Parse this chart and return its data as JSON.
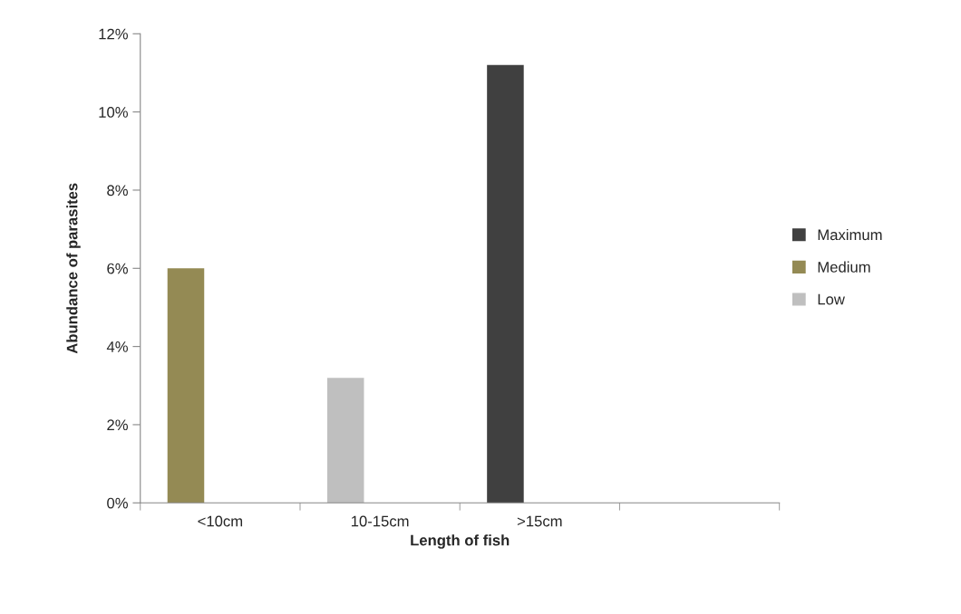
{
  "chart_data": {
    "type": "bar",
    "xlabel": "Length of fish",
    "ylabel": "Abundance of parasites",
    "categories": [
      "<10cm",
      "10-15cm",
      ">15cm",
      null
    ],
    "series": [
      {
        "name": "Maximum",
        "color": "#404040",
        "values": [
          null,
          null,
          11.2,
          null
        ]
      },
      {
        "name": "Medium",
        "color": "#948a54",
        "values": [
          6,
          null,
          null,
          null
        ]
      },
      {
        "name": "Low",
        "color": "#bfbfbf",
        "values": [
          null,
          3.2,
          null,
          null
        ]
      }
    ],
    "ylim": [
      0,
      12
    ],
    "yticks": [
      {
        "value": 0,
        "label": "0%"
      },
      {
        "value": 2,
        "label": "2%"
      },
      {
        "value": 4,
        "label": "4%"
      },
      {
        "value": 6,
        "label": "6%"
      },
      {
        "value": 8,
        "label": "8%"
      },
      {
        "value": 10,
        "label": "10%"
      },
      {
        "value": 12,
        "label": "12%"
      }
    ],
    "grid": false,
    "legend": "right"
  }
}
